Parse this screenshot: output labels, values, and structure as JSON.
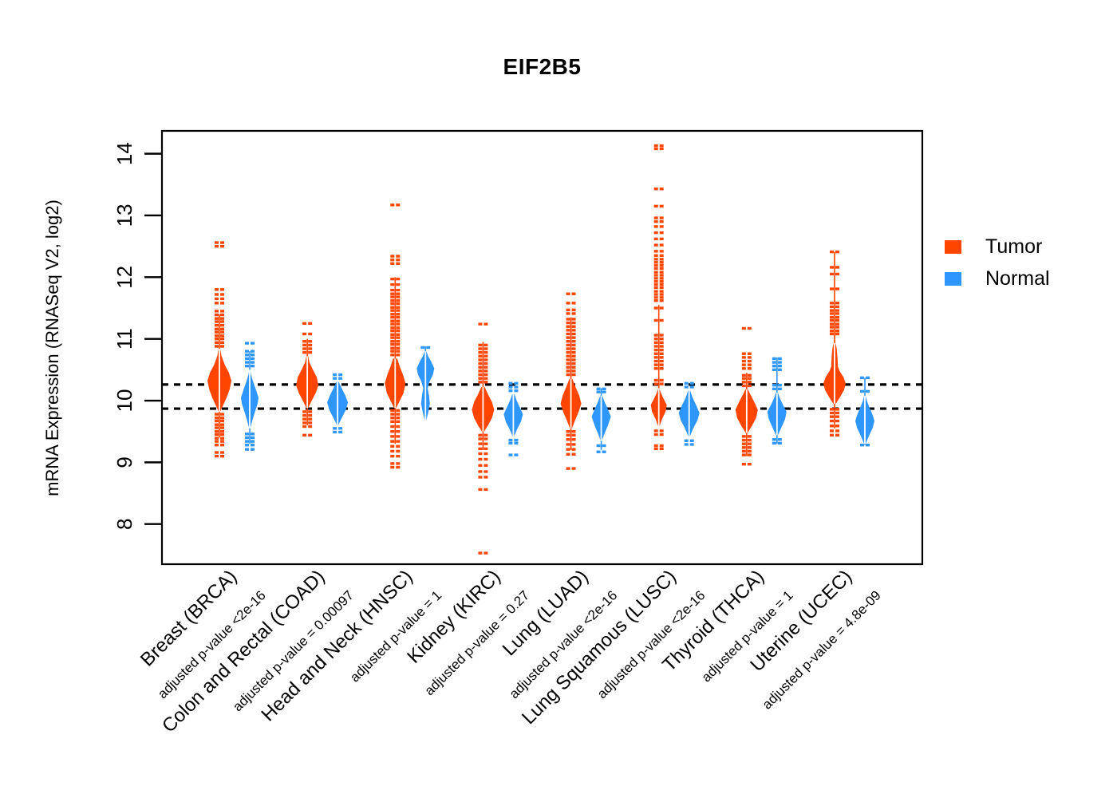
{
  "title": "EIF2B5",
  "legend": {
    "items": [
      {
        "label": "Tumor",
        "color": "#FF4500"
      },
      {
        "label": "Normal",
        "color": "#2E96FF"
      }
    ]
  },
  "chart_data": {
    "type": "violin-strip",
    "title": "EIF2B5",
    "ylabel": "mRNA Expression (RNASeq V2, log2)",
    "xlabel": "",
    "yticks": [
      8,
      9,
      10,
      11,
      12,
      13,
      14
    ],
    "ylim": [
      7.35,
      14.37
    ],
    "grid": false,
    "legend_position": "right",
    "hlines": {
      "values": [
        10.26,
        9.87
      ],
      "style": "dashed",
      "color": "#000000"
    },
    "series_colors": {
      "tumor": "#FF4500",
      "normal": "#2E96FF"
    },
    "axis_color": "#000000",
    "groups": [
      {
        "name": "Breast (BRCA)",
        "pvalue_label": "adjusted p-value <2e-16",
        "tumor": {
          "center": 10.32,
          "max_halfwidth": 15,
          "violin": [
            [
              9.82,
              0.06
            ],
            [
              9.92,
              0.3
            ],
            [
              10.05,
              0.6
            ],
            [
              10.18,
              0.85
            ],
            [
              10.32,
              1
            ],
            [
              10.45,
              0.8
            ],
            [
              10.58,
              0.45
            ],
            [
              10.72,
              0.18
            ],
            [
              10.84,
              0.06
            ]
          ],
          "stems": [
            [
              9.4,
              11.4
            ]
          ],
          "dashes": [
            12.56,
            12.5,
            11.8,
            11.72,
            11.65,
            11.58,
            11.45,
            11.39,
            11.33,
            11.28,
            11.22,
            11.16,
            11.11,
            11.05,
            11.0,
            10.94,
            10.88,
            9.78,
            9.72,
            9.67,
            9.61,
            9.56,
            9.5,
            9.45,
            9.39,
            9.34,
            9.28,
            9.16,
            9.1
          ]
        },
        "normal": {
          "center": 10.0,
          "max_halfwidth": 11,
          "violin": [
            [
              9.55,
              0.06
            ],
            [
              9.68,
              0.3
            ],
            [
              9.82,
              0.6
            ],
            [
              9.95,
              0.9
            ],
            [
              10.05,
              1
            ],
            [
              10.18,
              0.7
            ],
            [
              10.3,
              0.4
            ],
            [
              10.42,
              0.15
            ],
            [
              10.5,
              0.06
            ]
          ],
          "stems": [
            [
              9.3,
              10.8
            ]
          ],
          "dashes": [
            10.93,
            10.8,
            10.74,
            10.68,
            10.62,
            10.56,
            9.46,
            9.4,
            9.34,
            9.28,
            9.21
          ]
        }
      },
      {
        "name": "Colon and Rectal (COAD)",
        "pvalue_label": "adjusted p-value = 0.00097",
        "tumor": {
          "center": 10.28,
          "max_halfwidth": 14,
          "violin": [
            [
              9.88,
              0.08
            ],
            [
              10.0,
              0.4
            ],
            [
              10.12,
              0.75
            ],
            [
              10.25,
              1
            ],
            [
              10.38,
              0.85
            ],
            [
              10.5,
              0.5
            ],
            [
              10.62,
              0.2
            ],
            [
              10.72,
              0.08
            ]
          ],
          "stems": [
            [
              9.6,
              11.0
            ]
          ],
          "dashes": [
            11.25,
            11.08,
            10.96,
            10.9,
            10.84,
            10.78,
            9.82,
            9.76,
            9.7,
            9.64,
            9.58,
            9.44
          ]
        },
        "normal": {
          "center": 9.97,
          "max_halfwidth": 13,
          "violin": [
            [
              9.6,
              0.06
            ],
            [
              9.72,
              0.4
            ],
            [
              9.85,
              0.8
            ],
            [
              9.97,
              1
            ],
            [
              10.08,
              0.75
            ],
            [
              10.2,
              0.4
            ],
            [
              10.3,
              0.12
            ]
          ],
          "stems": [],
          "dashes": [
            10.42,
            10.36,
            9.55,
            9.49
          ]
        }
      },
      {
        "name": "Head and Neck (HNSC)",
        "pvalue_label": "adjusted p-value = 1",
        "tumor": {
          "center": 10.28,
          "max_halfwidth": 13,
          "violin": [
            [
              9.88,
              0.1
            ],
            [
              10.0,
              0.45
            ],
            [
              10.12,
              0.8
            ],
            [
              10.28,
              1
            ],
            [
              10.42,
              0.75
            ],
            [
              10.55,
              0.45
            ],
            [
              10.68,
              0.2
            ]
          ],
          "stems": [
            [
              9.3,
              12.0
            ]
          ],
          "dashes": [
            13.17,
            12.34,
            12.28,
            12.22,
            11.97,
            11.88,
            11.79,
            11.73,
            11.68,
            11.62,
            11.57,
            11.51,
            11.46,
            11.4,
            11.35,
            11.29,
            11.24,
            11.18,
            11.13,
            11.07,
            11.02,
            10.96,
            10.91,
            10.85,
            10.8,
            10.74,
            9.84,
            9.78,
            9.72,
            9.66,
            9.58,
            9.5,
            9.42,
            9.34,
            9.26,
            9.18,
            9.1,
            8.98,
            8.92
          ]
        },
        "normal": {
          "center": 10.52,
          "max_halfwidth": 11,
          "violin": [
            [
              9.68,
              0.08
            ],
            [
              9.8,
              0.3
            ],
            [
              9.95,
              0.5
            ],
            [
              10.08,
              0.4
            ],
            [
              10.2,
              0.25
            ],
            [
              10.32,
              0.5
            ],
            [
              10.42,
              0.85
            ],
            [
              10.52,
              1
            ],
            [
              10.62,
              0.7
            ],
            [
              10.72,
              0.3
            ],
            [
              10.8,
              0.1
            ]
          ],
          "stems": [
            [
              9.7,
              10.88
            ]
          ],
          "dashes": [
            10.86
          ]
        }
      },
      {
        "name": "Kidney (KIRC)",
        "pvalue_label": "adjusted p-value = 0.27",
        "tumor": {
          "center": 9.85,
          "max_halfwidth": 14,
          "violin": [
            [
              9.5,
              0.1
            ],
            [
              9.6,
              0.45
            ],
            [
              9.72,
              0.8
            ],
            [
              9.85,
              1
            ],
            [
              9.98,
              0.8
            ],
            [
              10.1,
              0.45
            ],
            [
              10.22,
              0.15
            ]
          ],
          "stems": [
            [
              9.2,
              10.95
            ]
          ],
          "dashes": [
            11.24,
            10.9,
            10.84,
            10.78,
            10.72,
            10.66,
            10.6,
            10.54,
            10.48,
            10.42,
            10.36,
            10.3,
            9.44,
            9.38,
            9.3,
            9.22,
            9.14,
            9.05,
            8.95,
            8.85,
            8.76,
            8.56,
            7.53
          ]
        },
        "normal": {
          "center": 9.78,
          "max_halfwidth": 12,
          "violin": [
            [
              9.42,
              0.08
            ],
            [
              9.54,
              0.4
            ],
            [
              9.66,
              0.8
            ],
            [
              9.78,
              1
            ],
            [
              9.9,
              0.65
            ],
            [
              10.0,
              0.35
            ],
            [
              10.1,
              0.12
            ]
          ],
          "stems": [],
          "dashes": [
            10.28,
            10.22,
            10.16,
            9.36,
            9.31,
            9.12
          ]
        }
      },
      {
        "name": "Lung (LUAD)",
        "pvalue_label": "adjusted p-value <2e-16",
        "tumor": {
          "center": 9.95,
          "max_halfwidth": 13,
          "violin": [
            [
              9.55,
              0.1
            ],
            [
              9.68,
              0.4
            ],
            [
              9.82,
              0.75
            ],
            [
              9.95,
              1
            ],
            [
              10.08,
              0.8
            ],
            [
              10.22,
              0.45
            ],
            [
              10.35,
              0.15
            ]
          ],
          "stems": [
            [
              9.2,
              11.35
            ]
          ],
          "dashes": [
            11.73,
            11.58,
            11.47,
            11.41,
            11.32,
            11.26,
            11.2,
            11.14,
            11.08,
            11.02,
            10.96,
            10.9,
            10.84,
            10.78,
            10.72,
            10.66,
            10.6,
            10.54,
            10.48,
            10.42,
            9.5,
            9.44,
            9.37,
            9.29,
            9.21,
            9.13,
            8.9
          ]
        },
        "normal": {
          "center": 9.74,
          "max_halfwidth": 12,
          "violin": [
            [
              9.35,
              0.06
            ],
            [
              9.47,
              0.35
            ],
            [
              9.6,
              0.7
            ],
            [
              9.74,
              1
            ],
            [
              9.86,
              0.7
            ],
            [
              9.98,
              0.35
            ],
            [
              10.08,
              0.1
            ]
          ],
          "stems": [
            [
              9.2,
              10.2
            ]
          ],
          "dashes": [
            10.19,
            10.14,
            9.27,
            9.17
          ]
        }
      },
      {
        "name": "Lung Squamous (LUSC)",
        "pvalue_label": "adjusted p-value <2e-16",
        "tumor": {
          "center": 9.93,
          "max_halfwidth": 10,
          "violin": [
            [
              9.58,
              0.08
            ],
            [
              9.7,
              0.4
            ],
            [
              9.82,
              0.85
            ],
            [
              9.93,
              1
            ],
            [
              10.03,
              0.6
            ],
            [
              10.13,
              0.25
            ],
            [
              10.2,
              0.08
            ]
          ],
          "stems": [
            [
              9.6,
              11.55
            ]
          ],
          "dashes": [
            14.13,
            14.08,
            13.43,
            13.15,
            12.96,
            12.9,
            12.82,
            12.72,
            12.62,
            12.52,
            12.42,
            12.35,
            12.29,
            12.24,
            12.19,
            12.14,
            12.08,
            12.03,
            11.98,
            11.93,
            11.88,
            11.83,
            11.77,
            11.72,
            11.67,
            11.62,
            11.5,
            11.3,
            11.06,
            11.0,
            10.94,
            10.88,
            10.82,
            10.76,
            10.7,
            10.64,
            10.58,
            10.52,
            10.33,
            10.27,
            9.51,
            9.45,
            9.27,
            9.22
          ]
        },
        "normal": {
          "center": 9.8,
          "max_halfwidth": 13,
          "violin": [
            [
              9.42,
              0.08
            ],
            [
              9.55,
              0.4
            ],
            [
              9.68,
              0.8
            ],
            [
              9.8,
              1
            ],
            [
              9.92,
              0.7
            ],
            [
              10.04,
              0.35
            ],
            [
              10.16,
              0.1
            ]
          ],
          "stems": [],
          "dashes": [
            10.28,
            10.22,
            9.35,
            9.29
          ]
        }
      },
      {
        "name": "Thyroid (THCA)",
        "pvalue_label": "adjusted p-value = 1",
        "tumor": {
          "center": 9.85,
          "max_halfwidth": 14,
          "violin": [
            [
              9.48,
              0.1
            ],
            [
              9.6,
              0.5
            ],
            [
              9.72,
              0.85
            ],
            [
              9.85,
              1
            ],
            [
              9.97,
              0.7
            ],
            [
              10.08,
              0.38
            ],
            [
              10.18,
              0.12
            ]
          ],
          "stems": [
            [
              9.1,
              10.45
            ]
          ],
          "dashes": [
            11.17,
            10.76,
            10.7,
            10.64,
            10.58,
            10.52,
            10.41,
            10.36,
            10.3,
            10.24,
            9.42,
            9.36,
            9.3,
            9.24,
            9.18,
            9.12,
            8.97
          ]
        },
        "normal": {
          "center": 9.82,
          "max_halfwidth": 12,
          "violin": [
            [
              9.44,
              0.1
            ],
            [
              9.56,
              0.45
            ],
            [
              9.7,
              0.85
            ],
            [
              9.82,
              1
            ],
            [
              9.94,
              0.6
            ],
            [
              10.04,
              0.3
            ],
            [
              10.13,
              0.1
            ]
          ],
          "stems": [
            [
              9.3,
              10.7
            ]
          ],
          "dashes": [
            10.68,
            10.62,
            10.56,
            10.5,
            10.25,
            10.19,
            9.37,
            9.31
          ]
        }
      },
      {
        "name": "Uterine (UCEC)",
        "pvalue_label": "adjusted p-value = 4.8e-09",
        "tumor": {
          "center": 10.28,
          "max_halfwidth": 14,
          "violin": [
            [
              9.95,
              0.12
            ],
            [
              10.06,
              0.5
            ],
            [
              10.17,
              0.85
            ],
            [
              10.28,
              1
            ],
            [
              10.38,
              0.8
            ],
            [
              10.48,
              0.45
            ],
            [
              10.55,
              0.3
            ],
            [
              10.65,
              0.28
            ],
            [
              10.76,
              0.24
            ],
            [
              10.86,
              0.18
            ],
            [
              10.93,
              0.08
            ]
          ],
          "stems": [
            [
              9.55,
              11.6
            ],
            [
              11.6,
              12.41
            ]
          ],
          "dashes": [
            12.41,
            12.16,
            12.05,
            11.81,
            11.58,
            11.52,
            11.46,
            11.41,
            11.35,
            11.3,
            11.24,
            11.19,
            11.13,
            11.08,
            9.86,
            9.8,
            9.74,
            9.67,
            9.59,
            9.51,
            9.44
          ]
        },
        "normal": {
          "center": 9.67,
          "max_halfwidth": 12,
          "violin": [
            [
              9.3,
              0.08
            ],
            [
              9.42,
              0.4
            ],
            [
              9.55,
              0.8
            ],
            [
              9.67,
              1
            ],
            [
              9.79,
              0.75
            ],
            [
              9.9,
              0.45
            ],
            [
              10.0,
              0.2
            ],
            [
              10.08,
              0.08
            ]
          ],
          "stems": [
            [
              9.28,
              10.37
            ]
          ],
          "dashes": [
            10.37,
            10.15,
            9.28
          ]
        }
      }
    ]
  }
}
